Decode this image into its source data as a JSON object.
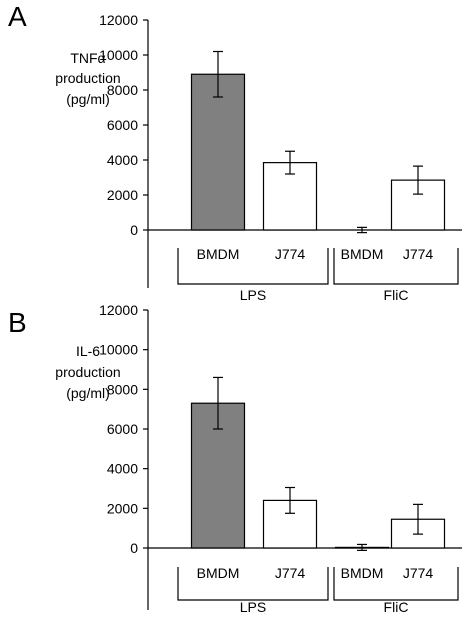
{
  "chart_data": [
    {
      "panel": "A",
      "type": "bar",
      "ylabel_lines": [
        "TNFα",
        "production",
        "(pg/ml)"
      ],
      "ylim": [
        0,
        12000
      ],
      "yticks": [
        0,
        2000,
        4000,
        6000,
        8000,
        10000,
        12000
      ],
      "categories": [
        "BMDM",
        "J774",
        "BMDM",
        "J774"
      ],
      "groups": [
        {
          "label": "LPS",
          "categories": [
            0,
            1
          ]
        },
        {
          "label": "FliC",
          "categories": [
            2,
            3
          ]
        }
      ],
      "values": [
        8900,
        3850,
        0,
        2850
      ],
      "errors": [
        1300,
        650,
        150,
        800
      ],
      "bar_colors": [
        "#808080",
        "#ffffff",
        "#ffffff",
        "#ffffff"
      ]
    },
    {
      "panel": "B",
      "type": "bar",
      "ylabel_lines": [
        "IL-6",
        "production",
        "(pg/ml)"
      ],
      "ylim": [
        0,
        12000
      ],
      "yticks": [
        0,
        2000,
        4000,
        6000,
        8000,
        10000,
        12000
      ],
      "categories": [
        "BMDM",
        "J774",
        "BMDM",
        "J774"
      ],
      "groups": [
        {
          "label": "LPS",
          "categories": [
            0,
            1
          ]
        },
        {
          "label": "FliC",
          "categories": [
            2,
            3
          ]
        }
      ],
      "values": [
        7300,
        2400,
        30,
        1450
      ],
      "errors": [
        1300,
        650,
        150,
        750
      ],
      "bar_colors": [
        "#808080",
        "#ffffff",
        "#ffffff",
        "#ffffff"
      ]
    }
  ]
}
